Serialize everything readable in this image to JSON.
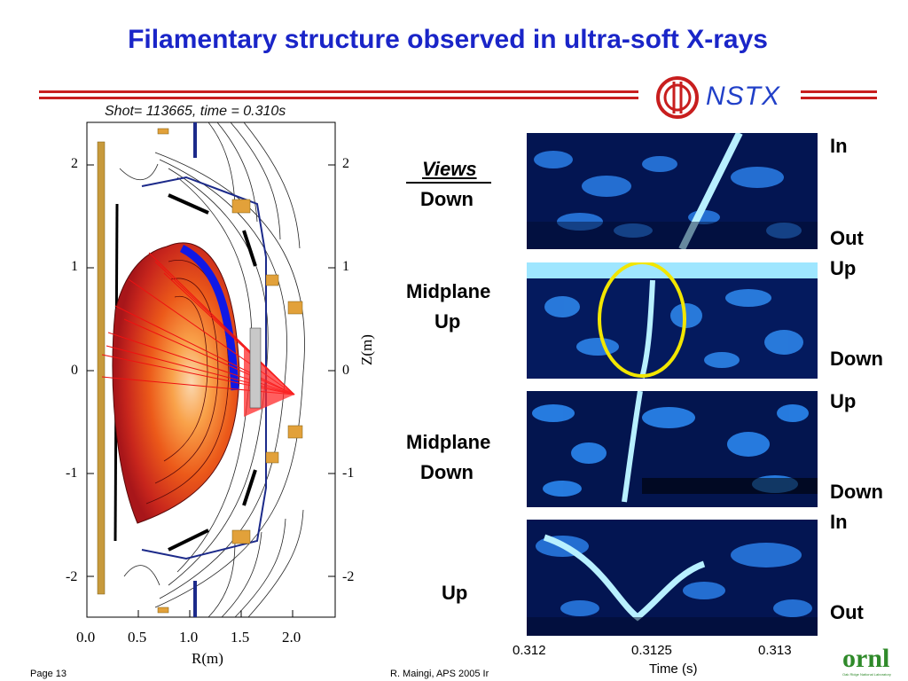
{
  "title": "Filamentary structure observed in ultra-soft X-rays",
  "logos": {
    "nstx": "NSTX",
    "ornl": "ornl",
    "ornl_small": "Oak Ridge National Laboratory"
  },
  "equilibrium_plot": {
    "caption": "Shot= 113665, time = 0.310s",
    "xlabel": "R(m)",
    "ylabel": "Z(m)",
    "x_ticks": [
      "0.0",
      "0.5",
      "1.0",
      "1.5",
      "2.0"
    ],
    "y_ticks_left": [
      "2",
      "1",
      "0",
      "-1",
      "-2"
    ],
    "y_ticks_right": [
      "2",
      "1",
      "0",
      "-1",
      "-2"
    ]
  },
  "views": {
    "heading": "Views",
    "items": [
      {
        "line1": "Down",
        "line2": ""
      },
      {
        "line1": "Midplane",
        "line2": "Up"
      },
      {
        "line1": "Midplane",
        "line2": "Down"
      },
      {
        "line1": "Up",
        "line2": ""
      }
    ]
  },
  "strips": {
    "right_labels": [
      {
        "top": "In",
        "bottom": "Out"
      },
      {
        "top": "Up",
        "bottom": "Down"
      },
      {
        "top": "Up",
        "bottom": "Down"
      },
      {
        "top": "In",
        "bottom": "Out"
      }
    ],
    "x_ticks": [
      "0.312",
      "0.3125",
      "0.313"
    ],
    "xlabel": "Time (s)"
  },
  "footer": {
    "page": "Page 13",
    "author": "R. Maingi, APS 2005  Ir"
  },
  "colors": {
    "title": "#1a25c8",
    "rule": "#c81e1e",
    "strip_dark": "#000a2e",
    "strip_light": "#9fe6ff",
    "highlight": "#f2e600"
  }
}
